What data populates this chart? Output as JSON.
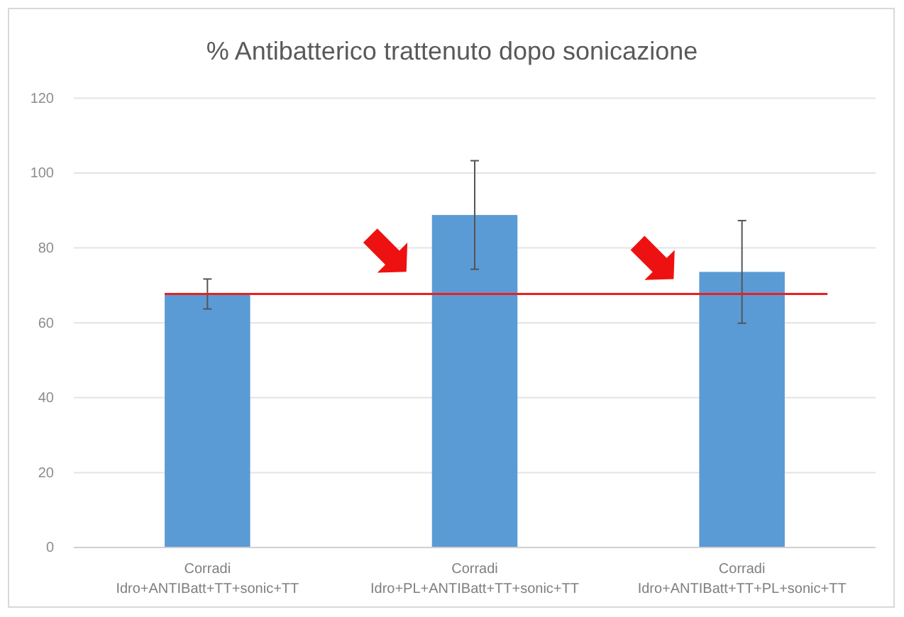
{
  "chart_data": {
    "type": "bar",
    "title": "% Antibatterico trattenuto dopo sonicazione",
    "categories": [
      "Corradi\nIdro+ANTIBatt+TT+sonic+TT",
      "Corradi\nIdro+PL+ANTIBatt+TT+sonic+TT",
      "Corradi\nIdro+ANTIBatt+TT+PL+sonic+TT"
    ],
    "values": [
      67.7,
      88.8,
      73.6
    ],
    "color": "#5b9bd5",
    "errors": [
      4,
      14.5,
      13.7
    ],
    "ylim": [
      0,
      120
    ],
    "yticks": [
      0,
      20,
      40,
      60,
      80,
      100,
      120
    ],
    "grid": "y",
    "ref_lines": [
      {
        "axis": "y",
        "value": 67.7,
        "color": "#e8201f"
      }
    ]
  }
}
